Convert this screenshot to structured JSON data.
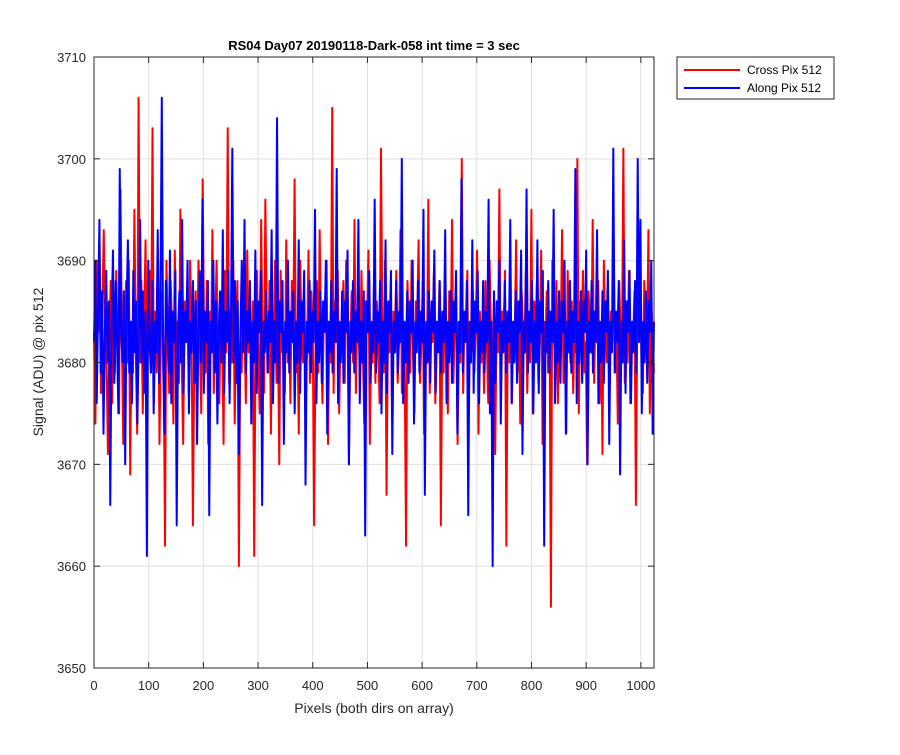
{
  "chart_data": {
    "type": "line",
    "title": "RS04 Day07 20190118-Dark-058 int time = 3 sec",
    "xlabel": "Pixels (both dirs on array)",
    "ylabel": "Signal (ADU) @ pix 512",
    "xlim": [
      0,
      1024
    ],
    "ylim": [
      3650,
      3710
    ],
    "xticks": [
      0,
      100,
      200,
      300,
      400,
      500,
      600,
      700,
      800,
      900,
      1000
    ],
    "yticks": [
      3650,
      3660,
      3670,
      3680,
      3690,
      3700,
      3710
    ],
    "grid": true,
    "legend_position": "outside top-right",
    "series": [
      {
        "name": "Cross Pix 512",
        "color": "#ff0000",
        "note_shape": "dark-frame noise around mean",
        "mean": 3683,
        "std": 6,
        "values": [
          3683,
          3674,
          3690,
          3683,
          3690,
          3677,
          3685,
          3693,
          3684,
          3680,
          3671,
          3682,
          3688,
          3676,
          3687,
          3679,
          3689,
          3681,
          3675,
          3697,
          3683,
          3672,
          3682,
          3688,
          3680,
          3690,
          3669,
          3684,
          3679,
          3695,
          3681,
          3673,
          3706,
          3680,
          3688,
          3675,
          3684,
          3692,
          3677,
          3683,
          3689,
          3681,
          3703,
          3676,
          3685,
          3679,
          3690,
          3672,
          3682,
          3687,
          3680,
          3662,
          3690,
          3683,
          3677,
          3688,
          3684,
          3674,
          3691,
          3681,
          3684,
          3678,
          3695,
          3680,
          3672,
          3686,
          3683,
          3688,
          3677,
          3690,
          3684,
          3664,
          3681,
          3687,
          3679,
          3690,
          3682,
          3675,
          3698,
          3683,
          3679,
          3688,
          3672,
          3685,
          3681,
          3693,
          3677,
          3684,
          3690,
          3680,
          3676,
          3686,
          3683,
          3672,
          3689,
          3681,
          3703,
          3678,
          3685,
          3680,
          3690,
          3674,
          3683,
          3688,
          3660,
          3682,
          3679,
          3687,
          3684,
          3676,
          3691,
          3681,
          3685,
          3678,
          3686,
          3661,
          3683,
          3689,
          3680,
          3675,
          3694,
          3682,
          3677,
          3696,
          3684,
          3679,
          3688,
          3673,
          3685,
          3681,
          3690,
          3678,
          3684,
          3670,
          3689,
          3681,
          3683,
          3677,
          3692,
          3680,
          3685,
          3676,
          3688,
          3682,
          3698,
          3679,
          3684,
          3673,
          3690,
          3683,
          3680,
          3686,
          3675,
          3682,
          3691,
          3678,
          3687,
          3684,
          3664,
          3681,
          3688,
          3679,
          3693,
          3682,
          3676,
          3685,
          3683,
          3690,
          3672,
          3684,
          3680,
          3705,
          3677,
          3686,
          3682,
          3689,
          3675,
          3683,
          3681,
          3688,
          3678,
          3690,
          3684,
          3670,
          3682,
          3687,
          3680,
          3694,
          3677,
          3685,
          3683,
          3679,
          3689,
          3681,
          3674,
          3686,
          3684,
          3691,
          3672,
          3683,
          3680,
          3688,
          3678,
          3686,
          3682,
          3676,
          3701,
          3684,
          3679,
          3690,
          3667,
          3683,
          3681,
          3687,
          3675,
          3685,
          3683,
          3689,
          3678,
          3682,
          3693,
          3677,
          3684,
          3680,
          3662,
          3688,
          3683,
          3679,
          3690,
          3681,
          3675,
          3686,
          3684,
          3692,
          3678,
          3682,
          3688,
          3673,
          3683,
          3680,
          3696,
          3677,
          3685,
          3682,
          3689,
          3676,
          3684,
          3681,
          3688,
          3664,
          3683,
          3679,
          3690,
          3682,
          3675,
          3687,
          3681,
          3694,
          3678,
          3684,
          3686,
          3672,
          3683,
          3680,
          3700,
          3677,
          3685,
          3682,
          3689,
          3675,
          3684,
          3681,
          3687,
          3679,
          3683,
          3691,
          3673,
          3685,
          3680,
          3684,
          3677,
          3688,
          3682,
          3676,
          3690,
          3683,
          3679,
          3686,
          3671,
          3684,
          3681,
          3697,
          3678,
          3685,
          3682,
          3689,
          3662,
          3683,
          3680,
          3688,
          3676,
          3684,
          3682,
          3692,
          3679,
          3685,
          3674,
          3687,
          3683,
          3681,
          3689,
          3677,
          3684,
          3680,
          3695,
          3675,
          3686,
          3683,
          3688,
          3678,
          3682,
          3691,
          3672,
          3684,
          3681,
          3687,
          3679,
          3685,
          3656,
          3690,
          3683,
          3680,
          3688,
          3676,
          3684,
          3682,
          3693,
          3678,
          3685,
          3673,
          3689,
          3683,
          3680,
          3686,
          3677,
          3684,
          3681,
          3700,
          3675,
          3686,
          3683,
          3689,
          3679,
          3682,
          3670,
          3687,
          3684,
          3681,
          3694,
          3678,
          3685,
          3682,
          3688,
          3676,
          3684,
          3671,
          3690,
          3683,
          3680,
          3687,
          3677,
          3685,
          3682,
          3692,
          3679,
          3684,
          3674,
          3688,
          3683,
          3681,
          3701,
          3678,
          3686,
          3680,
          3689,
          3676,
          3684,
          3682,
          3687,
          3666,
          3685,
          3683,
          3690,
          3680,
          3677,
          3688,
          3684,
          3681,
          3693,
          3675,
          3686,
          3683,
          3679
        ]
      },
      {
        "name": "Along Pix 512",
        "color": "#0000ff",
        "note_shape": "dark-frame noise around mean",
        "mean": 3683,
        "std": 6,
        "values": [
          3682,
          3690,
          3676,
          3685,
          3694,
          3679,
          3687,
          3673,
          3683,
          3689,
          3680,
          3686,
          3666,
          3684,
          3691,
          3678,
          3688,
          3682,
          3675,
          3699,
          3683,
          3680,
          3687,
          3670,
          3685,
          3692,
          3679,
          3684,
          3676,
          3689,
          3681,
          3686,
          3674,
          3683,
          3694,
          3680,
          3687,
          3677,
          3685,
          3661,
          3690,
          3682,
          3679,
          3688,
          3675,
          3684,
          3681,
          3693,
          3678,
          3686,
          3706,
          3680,
          3673,
          3688,
          3684,
          3679,
          3691,
          3676,
          3685,
          3682,
          3689,
          3664,
          3683,
          3687,
          3680,
          3694,
          3677,
          3685,
          3682,
          3690,
          3675,
          3684,
          3681,
          3688,
          3678,
          3686,
          3672,
          3683,
          3689,
          3680,
          3696,
          3677,
          3685,
          3682,
          3688,
          3665,
          3684,
          3681,
          3690,
          3679,
          3686,
          3674,
          3683,
          3687,
          3680,
          3693,
          3677,
          3685,
          3682,
          3689,
          3676,
          3684,
          3701,
          3680,
          3688,
          3678,
          3686,
          3671,
          3683,
          3690,
          3681,
          3694,
          3679,
          3685,
          3682,
          3688,
          3674,
          3684,
          3680,
          3691,
          3677,
          3686,
          3683,
          3689,
          3666,
          3684,
          3681,
          3687,
          3679,
          3685,
          3682,
          3693,
          3676,
          3684,
          3680,
          3704,
          3678,
          3686,
          3683,
          3688,
          3672,
          3684,
          3681,
          3690,
          3679,
          3685,
          3682,
          3687,
          3675,
          3684,
          3680,
          3692,
          3677,
          3686,
          3683,
          3689,
          3668,
          3684,
          3681,
          3688,
          3679,
          3685,
          3682,
          3695,
          3676,
          3684,
          3680,
          3687,
          3678,
          3686,
          3683,
          3690,
          3673,
          3684,
          3681,
          3688,
          3679,
          3685,
          3682,
          3699,
          3676,
          3684,
          3680,
          3687,
          3678,
          3686,
          3683,
          3691,
          3670,
          3684,
          3681,
          3688,
          3679,
          3685,
          3682,
          3694,
          3676,
          3684,
          3680,
          3687,
          3663,
          3686,
          3683,
          3689,
          3678,
          3684,
          3681,
          3696,
          3679,
          3685,
          3682,
          3688,
          3675,
          3684,
          3680,
          3692,
          3677,
          3686,
          3683,
          3689,
          3671,
          3684,
          3681,
          3688,
          3679,
          3685,
          3682,
          3700,
          3676,
          3684,
          3680,
          3687,
          3678,
          3686,
          3683,
          3690,
          3674,
          3684,
          3681,
          3688,
          3679,
          3685,
          3682,
          3695,
          3667,
          3684,
          3680,
          3687,
          3678,
          3686,
          3683,
          3691,
          3677,
          3684,
          3681,
          3688,
          3679,
          3685,
          3682,
          3693,
          3676,
          3684,
          3680,
          3687,
          3678,
          3686,
          3683,
          3689,
          3673,
          3684,
          3681,
          3698,
          3679,
          3685,
          3682,
          3688,
          3665,
          3684,
          3680,
          3692,
          3677,
          3686,
          3683,
          3689,
          3676,
          3684,
          3681,
          3688,
          3679,
          3685,
          3682,
          3696,
          3675,
          3684,
          3660,
          3687,
          3678,
          3686,
          3683,
          3690,
          3674,
          3684,
          3681,
          3688,
          3679,
          3685,
          3682,
          3694,
          3676,
          3684,
          3680,
          3687,
          3678,
          3686,
          3683,
          3691,
          3671,
          3684,
          3681,
          3697,
          3679,
          3685,
          3682,
          3688,
          3675,
          3684,
          3680,
          3692,
          3677,
          3686,
          3683,
          3689,
          3662,
          3684,
          3681,
          3688,
          3679,
          3685,
          3682,
          3695,
          3676,
          3684,
          3680,
          3687,
          3678,
          3686,
          3683,
          3690,
          3673,
          3684,
          3681,
          3688,
          3679,
          3685,
          3682,
          3699,
          3676,
          3684,
          3680,
          3687,
          3678,
          3686,
          3683,
          3691,
          3670,
          3684,
          3681,
          3688,
          3679,
          3685,
          3682,
          3693,
          3676,
          3684,
          3680,
          3687,
          3678,
          3686,
          3683,
          3689,
          3672,
          3684,
          3681,
          3701,
          3679,
          3685,
          3682,
          3688,
          3669,
          3684,
          3680,
          3692,
          3677,
          3686,
          3683,
          3689,
          3676,
          3684,
          3681,
          3688,
          3679,
          3700,
          3682,
          3694,
          3675,
          3684,
          3680,
          3687,
          3678,
          3686,
          3683,
          3690,
          3673,
          3684
        ]
      }
    ]
  }
}
